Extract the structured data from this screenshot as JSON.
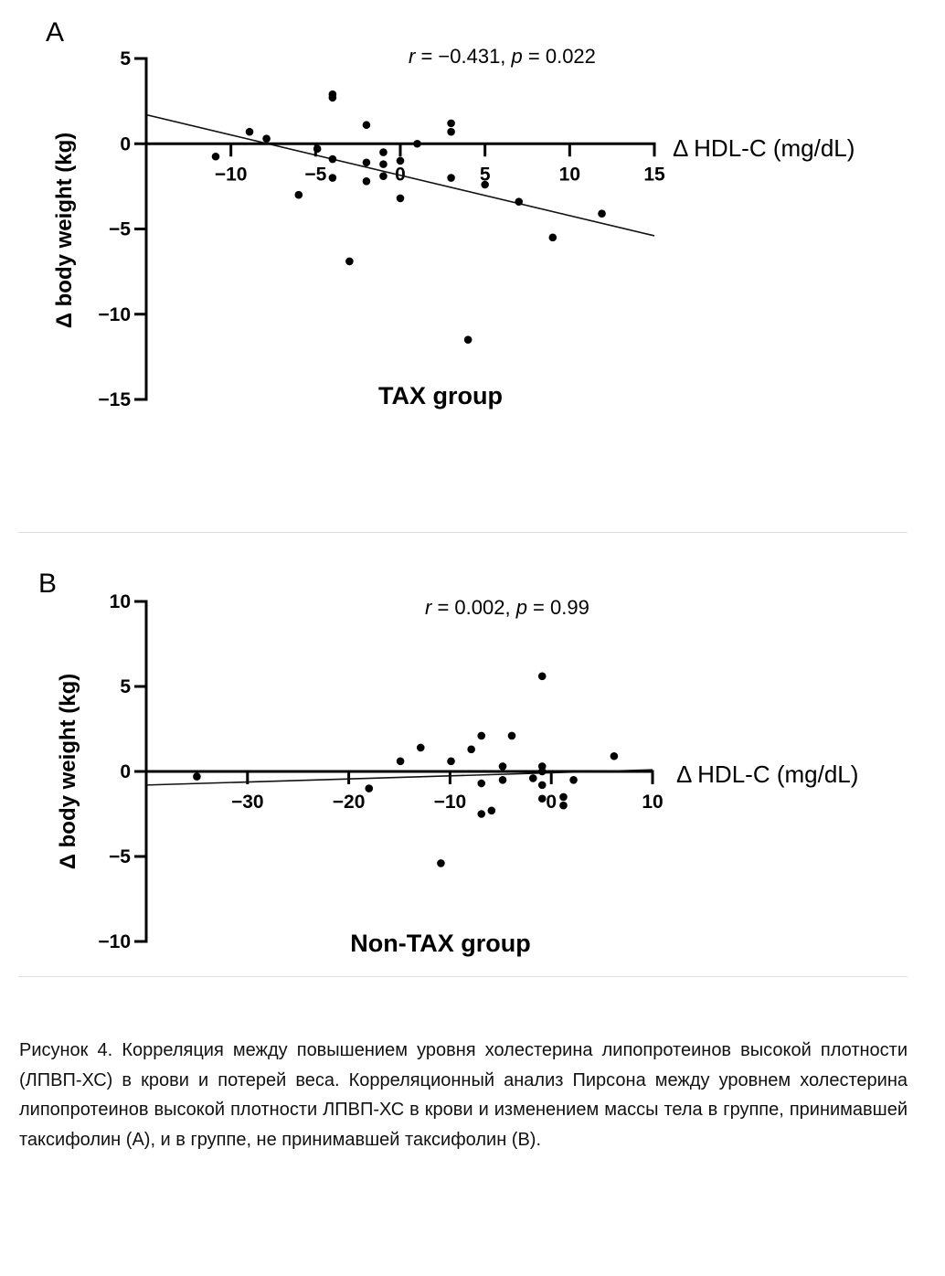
{
  "chart_data": [
    {
      "type": "scatter",
      "panel_label": "A",
      "title": "TAX group",
      "xlabel": "Δ HDL-C (mg/dL)",
      "ylabel": "Δ body weight (kg)",
      "annotation": {
        "r_label": "r",
        "r_value": " = −0.431, ",
        "p_label": "p",
        "p_value": " = 0.022"
      },
      "xlim": [
        -15,
        15
      ],
      "ylim": [
        -15,
        5
      ],
      "xticks": [
        -10,
        -5,
        0,
        5,
        10,
        15
      ],
      "xtick_labels": [
        "−10",
        "−5",
        "0",
        "5",
        "10",
        "15"
      ],
      "yticks": [
        5,
        0,
        -5,
        -10,
        -15
      ],
      "ytick_labels": [
        "5",
        "0",
        "−5",
        "−10",
        "−15"
      ],
      "grid": false,
      "points": [
        {
          "x": -10.9,
          "y": -0.75
        },
        {
          "x": -8.9,
          "y": 0.7
        },
        {
          "x": -7.9,
          "y": 0.3
        },
        {
          "x": -6.0,
          "y": -3.0
        },
        {
          "x": -4.9,
          "y": -0.3
        },
        {
          "x": -4.0,
          "y": 2.9
        },
        {
          "x": -4.0,
          "y": 2.7
        },
        {
          "x": -4.0,
          "y": -0.9
        },
        {
          "x": -4.0,
          "y": -2.0
        },
        {
          "x": -3.0,
          "y": -6.9
        },
        {
          "x": -2.0,
          "y": 1.1
        },
        {
          "x": -2.0,
          "y": -1.1
        },
        {
          "x": -2.0,
          "y": -2.2
        },
        {
          "x": -1.0,
          "y": -0.5
        },
        {
          "x": -1.0,
          "y": -1.2
        },
        {
          "x": -1.0,
          "y": -1.9
        },
        {
          "x": 0.0,
          "y": -1.0
        },
        {
          "x": 0.0,
          "y": -3.2
        },
        {
          "x": 1.0,
          "y": 0.0
        },
        {
          "x": 3.0,
          "y": 1.2
        },
        {
          "x": 3.0,
          "y": 0.7
        },
        {
          "x": 3.0,
          "y": -2.0
        },
        {
          "x": 4.0,
          "y": -11.5
        },
        {
          "x": 5.0,
          "y": -2.4
        },
        {
          "x": 7.0,
          "y": -3.4
        },
        {
          "x": 9.0,
          "y": -5.5
        },
        {
          "x": 11.9,
          "y": -4.1
        }
      ],
      "regression": {
        "x": [
          -15,
          15
        ],
        "y": [
          1.7,
          -5.4
        ]
      }
    },
    {
      "type": "scatter",
      "panel_label": "B",
      "title": "Non-TAX group",
      "xlabel": "Δ HDL-C (mg/dL)",
      "ylabel": "Δ body weight (kg)",
      "annotation": {
        "r_label": "r",
        "r_value": " = 0.002,  ",
        "p_label": "p",
        "p_value": " = 0.99"
      },
      "xlim": [
        -40,
        10
      ],
      "ylim": [
        -10,
        10
      ],
      "xticks": [
        -30,
        -20,
        -10,
        0,
        10
      ],
      "xtick_labels": [
        "−30",
        "−20",
        "−10",
        "0",
        "10"
      ],
      "yticks": [
        10,
        5,
        0,
        -5,
        -10
      ],
      "ytick_labels": [
        "10",
        "5",
        "0",
        "−5",
        "−10"
      ],
      "grid": false,
      "points": [
        {
          "x": -35.0,
          "y": -0.3
        },
        {
          "x": -18.0,
          "y": -1.0
        },
        {
          "x": -14.9,
          "y": 0.6
        },
        {
          "x": -12.9,
          "y": 1.4
        },
        {
          "x": -10.9,
          "y": -5.4
        },
        {
          "x": -9.9,
          "y": 0.6
        },
        {
          "x": -7.9,
          "y": 1.3
        },
        {
          "x": -6.9,
          "y": 2.1
        },
        {
          "x": -6.9,
          "y": -0.7
        },
        {
          "x": -6.9,
          "y": -2.5
        },
        {
          "x": -5.9,
          "y": -2.3
        },
        {
          "x": -4.8,
          "y": 0.3
        },
        {
          "x": -4.8,
          "y": -0.5
        },
        {
          "x": -3.9,
          "y": 2.1
        },
        {
          "x": -1.8,
          "y": -0.4
        },
        {
          "x": -0.9,
          "y": 5.6
        },
        {
          "x": -0.9,
          "y": 0.3
        },
        {
          "x": -0.9,
          "y": 0.0
        },
        {
          "x": -0.9,
          "y": -0.8
        },
        {
          "x": -0.9,
          "y": -1.6
        },
        {
          "x": 1.2,
          "y": -1.5
        },
        {
          "x": 1.2,
          "y": -2.0
        },
        {
          "x": 2.2,
          "y": -0.5
        },
        {
          "x": 6.2,
          "y": 0.9
        }
      ],
      "regression": {
        "x": [
          -40,
          10
        ],
        "y": [
          -0.8,
          0.1
        ]
      }
    }
  ],
  "caption": "Рисунок 4. Корреляция между повышением уровня холестерина липопротеинов высокой плотности (ЛПВП-ХС) в крови и потерей веса. Корреляционный анализ Пирсона между уровнем холестерина липопротеинов высокой плотности ЛПВП-ХС в крови и изменением массы тела в группе, принимавшей таксифолин (A), и в группе, не принимавшей таксифолин (B)."
}
